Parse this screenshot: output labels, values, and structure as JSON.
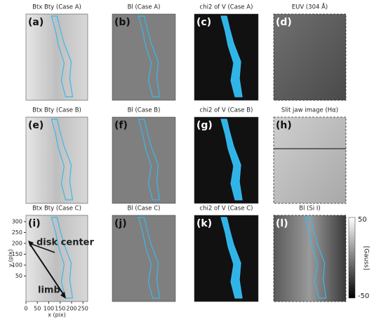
{
  "panels": [
    {
      "title": "Btx Bty (Case A)",
      "label": "(a)"
    },
    {
      "title": "Bl (Case A)",
      "label": "(b)"
    },
    {
      "title": "chi2 of V (Case A)",
      "label": "(c)"
    },
    {
      "title": "EUV (304 Å)",
      "label": "(d)"
    },
    {
      "title": "Btx Bty (Case B)",
      "label": "(e)"
    },
    {
      "title": "Bl (Case B)",
      "label": "(f)"
    },
    {
      "title": "chi2 of V (Case B)",
      "label": "(g)"
    },
    {
      "title": "Slit jaw image (Hα)",
      "label": "(h)"
    },
    {
      "title": "Btx Bty (Case C)",
      "label": "(i)"
    },
    {
      "title": "Bl (Case C)",
      "label": "(j)"
    },
    {
      "title": "chi2 of V (Case C)",
      "label": "(k)"
    },
    {
      "title": "Bl (Si I)",
      "label": "(l)"
    }
  ],
  "axes": {
    "xlabel": "x (pix)",
    "ylabel": "y (pix)",
    "xticks": [
      0,
      50,
      100,
      150,
      200,
      250
    ],
    "yticks": [
      50,
      100,
      150,
      200,
      250,
      300
    ]
  },
  "annotations": {
    "disk_center": "disk center",
    "limb": "limb"
  },
  "colorbar": {
    "label": "[Gauss]",
    "ticks": [
      50,
      -50
    ]
  }
}
